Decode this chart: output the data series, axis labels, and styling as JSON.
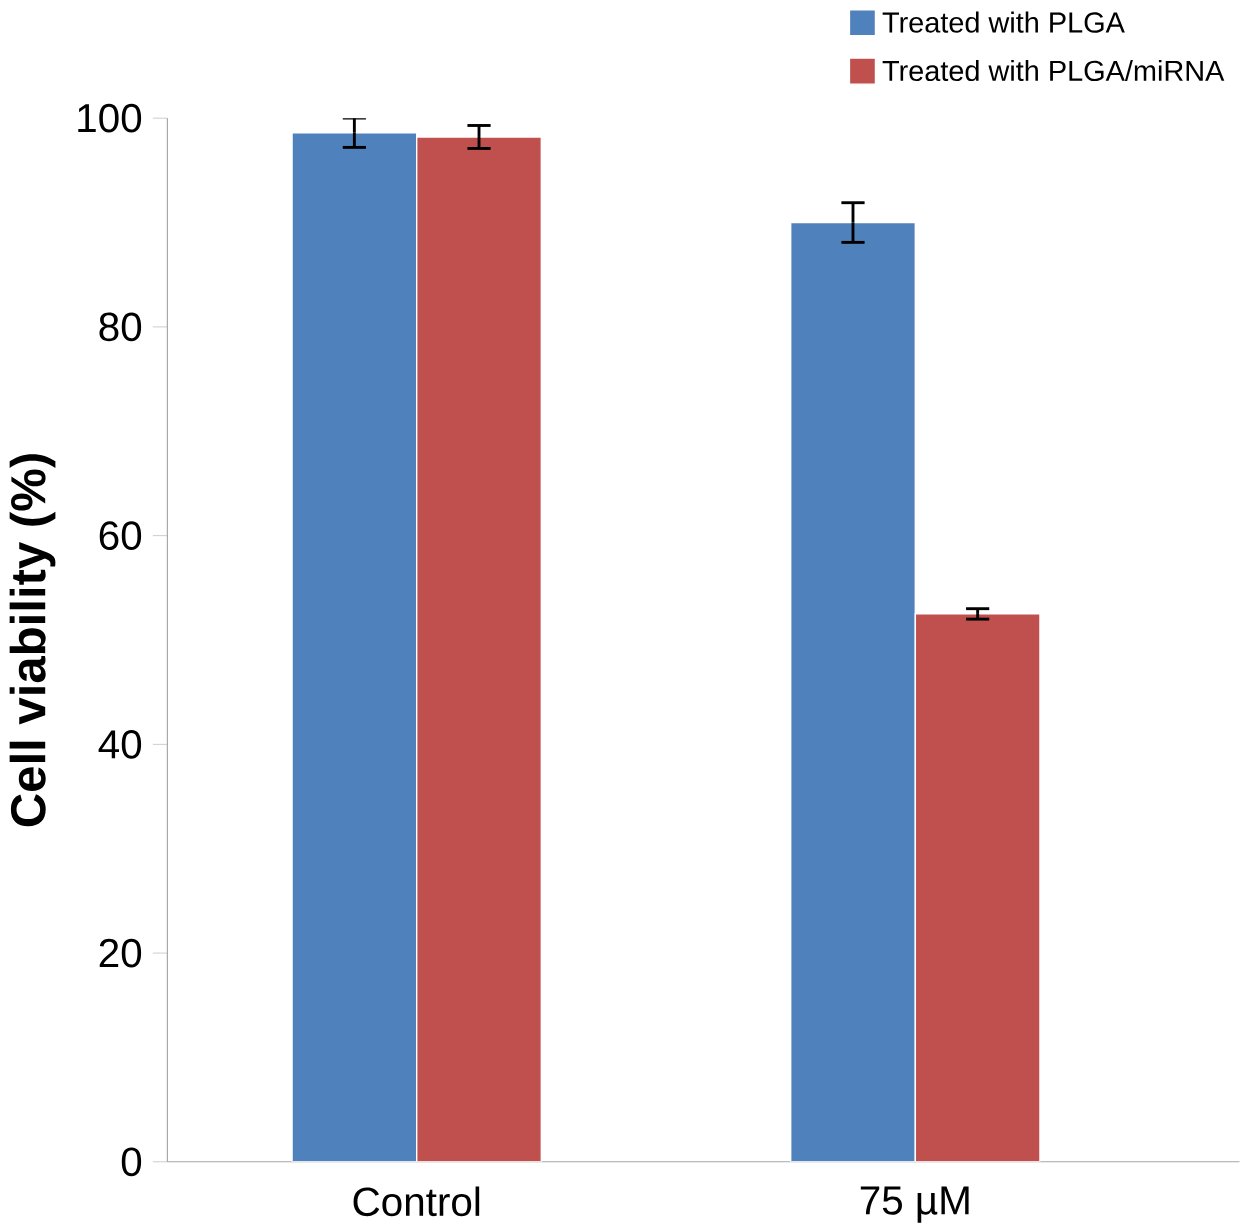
{
  "chart_data": {
    "type": "bar",
    "ylabel": "Cell viability (%)",
    "categories": [
      "Control",
      "75 µM"
    ],
    "series": [
      {
        "name": "Treated with PLGA",
        "color": "#4f81bd",
        "values": [
          98.6,
          90.0
        ],
        "errors": [
          1.4,
          1.9
        ]
      },
      {
        "name": "Treated with PLGA/miRNA",
        "color": "#c0504d",
        "values": [
          98.2,
          52.5
        ],
        "errors": [
          1.1,
          0.5
        ]
      }
    ],
    "ylim": [
      0,
      100
    ],
    "yticks": [
      0,
      20,
      40,
      60,
      80,
      100
    ],
    "grid": false,
    "legend": "top right"
  }
}
